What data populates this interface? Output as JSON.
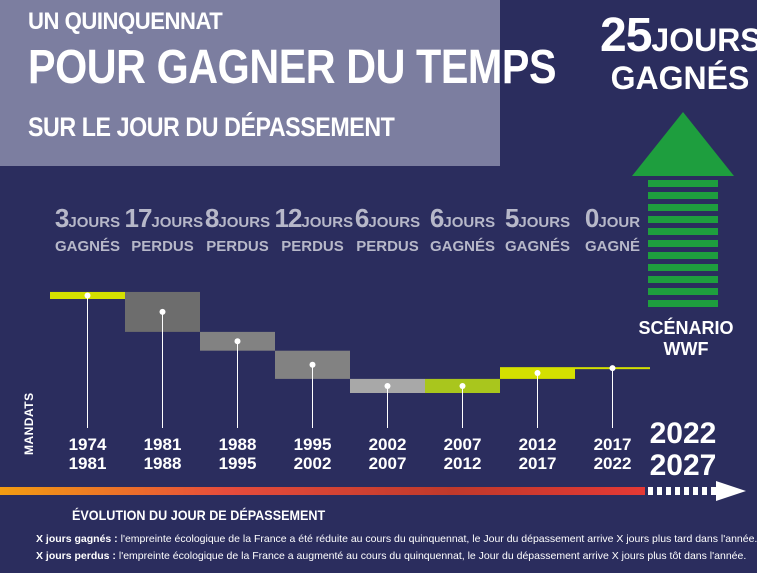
{
  "header": {
    "line1": "UN QUINQUENNAT",
    "line2": "POUR GAGNER DU TEMPS",
    "line3": "SUR LE JOUR DU DÉPASSEMENT"
  },
  "scenario": {
    "number": "25",
    "unit": "JOURS",
    "kind": "GAGNÉS",
    "label_line1": "SCÉNARIO",
    "label_line2": "WWF"
  },
  "axis": {
    "vertical_label": "MANDATS",
    "timeline_label": "ÉVOLUTION DU JOUR DE DÉPASSEMENT"
  },
  "footnotes": {
    "gained_term": "X jours gagnés :",
    "gained_text": " l'empreinte écologique de la France a été réduite au cours du quinquennat, le Jour du dépassement arrive X jours plus tard dans l'année.",
    "lost_term": "X jours perdus :",
    "lost_text": " l'empreinte écologique de la France a augmenté au cours du quinquennat, le Jour du dépassement arrive X jours plus tôt dans l'année."
  },
  "colors": {
    "background": "#2b2d5e",
    "title_box": "#7c7ea0",
    "scenario_arrow": "#1e9e3e",
    "gained_bright": "#d4e000",
    "gained_green": "#a9c61d",
    "lost_dark": "#6d6d6d",
    "lost_mid": "#828282",
    "lost_light": "#a8a8a8"
  },
  "chart_data": {
    "type": "bar",
    "title": "UN QUINQUENNAT POUR GAGNER DU TEMPS SUR LE JOUR DU DÉPASSEMENT",
    "xlabel": "MANDATS",
    "ylabel": "",
    "categories": [
      "1974\n1981",
      "1981\n1988",
      "1988\n1995",
      "1995\n2002",
      "2002\n2007",
      "2007\n2012",
      "2012\n2017",
      "2017\n2022",
      "2022\n2027"
    ],
    "periods": [
      {
        "start": "1974",
        "end": "1981",
        "days": 3,
        "num": "3",
        "unit": "JOURS",
        "kind": "GAGNÉS",
        "level": 3,
        "color": "#d4e000"
      },
      {
        "start": "1981",
        "end": "1988",
        "days": -17,
        "num": "17",
        "unit": "JOURS",
        "kind": "PERDUS",
        "level": -14,
        "color": "#6d6d6d"
      },
      {
        "start": "1988",
        "end": "1995",
        "days": -8,
        "num": "8",
        "unit": "JOURS",
        "kind": "PERDUS",
        "level": -22,
        "color": "#828282"
      },
      {
        "start": "1995",
        "end": "2002",
        "days": -12,
        "num": "12",
        "unit": "JOURS",
        "kind": "PERDUS",
        "level": -34,
        "color": "#828282"
      },
      {
        "start": "2002",
        "end": "2007",
        "days": -6,
        "num": "6",
        "unit": "JOURS",
        "kind": "PERDUS",
        "level": -40,
        "color": "#a8a8a8"
      },
      {
        "start": "2007",
        "end": "2012",
        "days": 6,
        "num": "6",
        "unit": "JOURS",
        "kind": "GAGNÉS",
        "level": -34,
        "color": "#a9c61d"
      },
      {
        "start": "2012",
        "end": "2017",
        "days": 5,
        "num": "5",
        "unit": "JOURS",
        "kind": "GAGNÉS",
        "level": -29,
        "color": "#d4e000"
      },
      {
        "start": "2017",
        "end": "2022",
        "days": 0,
        "num": "0",
        "unit": "JOUR",
        "kind": "GAGNÉ",
        "level": -29,
        "color": "#d4e000"
      }
    ],
    "scenario": {
      "start": "2022",
      "end": "2027",
      "days": 25,
      "label": "SCÉNARIO WWF"
    }
  }
}
